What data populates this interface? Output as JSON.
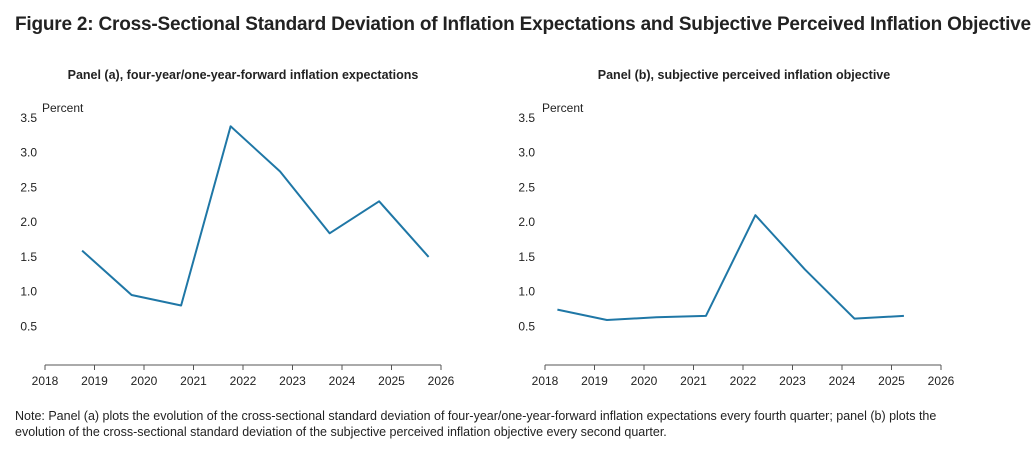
{
  "figure": {
    "title": "Figure 2: Cross-Sectional Standard Deviation of Inflation Expectations and Subjective Perceived Inflation Objective",
    "note": "Note: Panel (a) plots the evolution of the cross-sectional standard deviation of four-year/one-year-forward inflation expectations every fourth quarter; panel (b) plots the evolution of the cross-sectional standard deviation of the subjective perceived inflation objective every second quarter."
  },
  "colors": {
    "line": "#1f77a6",
    "axis": "#555555",
    "text": "#222222"
  },
  "chart_data": [
    {
      "type": "line",
      "title": "Panel (a), four-year/one-year-forward inflation expectations",
      "ylabel": "Percent",
      "xlabel": "",
      "xlim": [
        2018,
        2026
      ],
      "ylim": [
        0,
        3.5
      ],
      "x_ticks": [
        "2018",
        "2019",
        "2020",
        "2021",
        "2022",
        "2023",
        "2024",
        "2025",
        "2026"
      ],
      "y_ticks": [
        "3.5",
        "3.0",
        "2.5",
        "2.0",
        "1.5",
        "1.0",
        "0.5"
      ],
      "grid": false,
      "series": [
        {
          "x": [
            2018.75,
            2019.75,
            2020.75,
            2021.75,
            2022.75,
            2023.75,
            2024.75,
            2025.75
          ],
          "values": [
            1.59,
            0.95,
            0.8,
            3.38,
            2.73,
            1.84,
            2.3,
            1.5
          ]
        }
      ]
    },
    {
      "type": "line",
      "title": "Panel (b), subjective perceived inflation objective",
      "ylabel": "Percent",
      "xlabel": "",
      "xlim": [
        2018,
        2026
      ],
      "ylim": [
        0,
        3.5
      ],
      "x_ticks": [
        "2018",
        "2019",
        "2020",
        "2021",
        "2022",
        "2023",
        "2024",
        "2025",
        "2026"
      ],
      "y_ticks": [
        "3.5",
        "3.0",
        "2.5",
        "2.0",
        "1.5",
        "1.0",
        "0.5"
      ],
      "grid": false,
      "series": [
        {
          "x": [
            2018.25,
            2019.25,
            2020.25,
            2021.25,
            2022.25,
            2023.25,
            2024.25,
            2025.25
          ],
          "values": [
            0.74,
            0.59,
            0.63,
            0.65,
            2.1,
            1.32,
            0.61,
            0.65
          ]
        }
      ]
    }
  ]
}
